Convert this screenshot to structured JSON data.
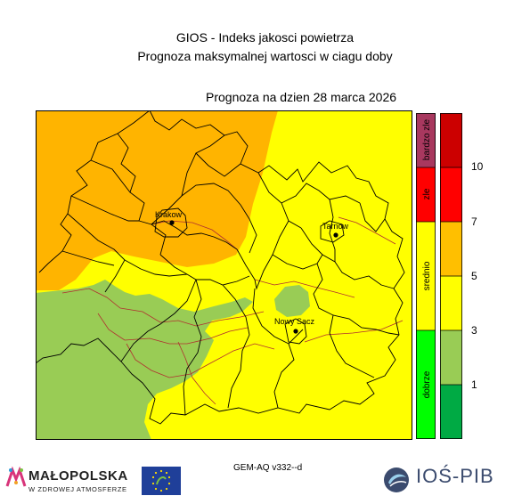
{
  "header": {
    "title_line1": "GIOS - Indeks jakosci powietrza",
    "title_line2": "Prognoza maksymalnej wartosci w ciagu doby",
    "forecast_date": "Prognoza na dzien  28 marca 2026"
  },
  "cities": [
    {
      "name": "Krakow"
    },
    {
      "name": "Tarnow"
    },
    {
      "name": "Nowy Sacz"
    }
  ],
  "colors": {
    "bardzo_zle": "#a8385f",
    "zle": "#ff0000",
    "srednio": "#ffff00",
    "dobrze": "#00ff00",
    "index_very_bad": "#cc0000",
    "index_bad": "#ff0000",
    "index_moderate": "#ffbf00",
    "index_sufficient": "#ffff00",
    "index_good": "#99cc55",
    "index_very_good": "#00aa44",
    "map_orange": "#ffb400",
    "map_yellow": "#ffff00",
    "map_green": "#99cc55"
  },
  "category_legend": [
    {
      "label": "bardzo zle"
    },
    {
      "label": "zle"
    },
    {
      "label": "srednio"
    },
    {
      "label": "dobrze"
    }
  ],
  "index_scale_ticks": [
    "10",
    "7",
    "5",
    "3",
    "1"
  ],
  "footer": {
    "model": "GEM-AQ v332--d",
    "malopolska_name": "MAŁOPOLSKA",
    "malopolska_slogan": "W ZDROWEJ ATMOSFERZE",
    "ios_name": "IOŚ-PIB",
    "eu_logo_icon": "eu-life-logo-icon"
  }
}
